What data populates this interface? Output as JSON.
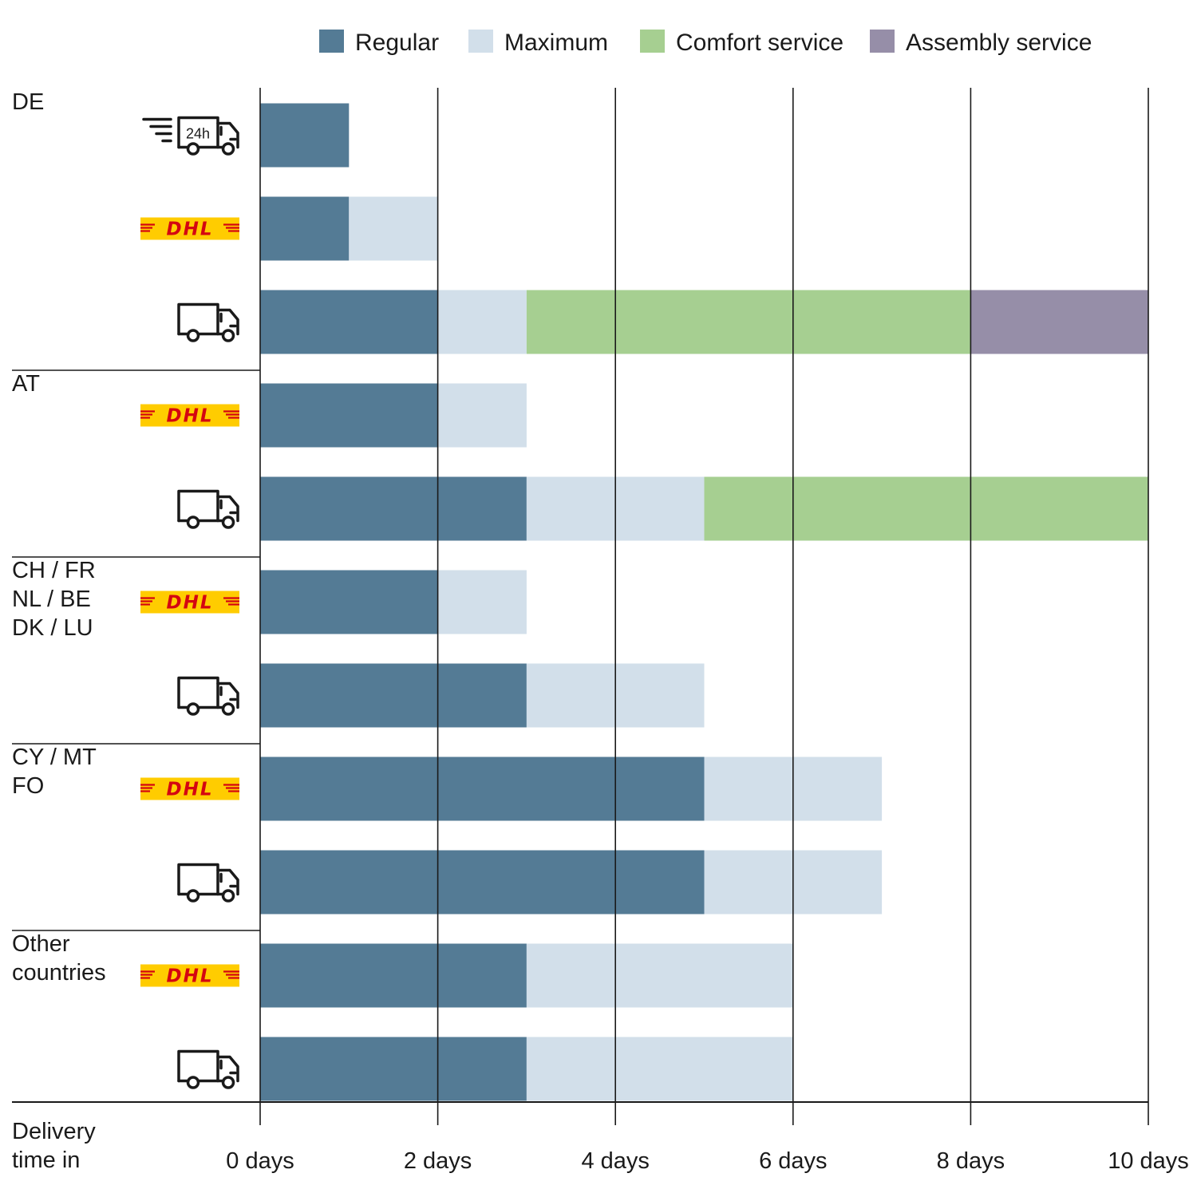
{
  "legend": [
    {
      "label": "Regular",
      "color": "#547b95"
    },
    {
      "label": "Maximum",
      "color": "#d2dfea"
    },
    {
      "label": "Comfort service",
      "color": "#a6cf91"
    },
    {
      "label": "Assembly service",
      "color": "#968ea8"
    }
  ],
  "footer": {
    "line1": "Delivery",
    "line2": "time in"
  },
  "chart_data": {
    "type": "bar",
    "orientation": "horizontal",
    "stacked": true,
    "x_unit": "days",
    "xlim": [
      0,
      10
    ],
    "x_ticks": [
      {
        "value": 0,
        "label": "0 days"
      },
      {
        "value": 2,
        "label": "2 days"
      },
      {
        "value": 4,
        "label": "4 days"
      },
      {
        "value": 6,
        "label": "6 days"
      },
      {
        "value": 8,
        "label": "8 days"
      },
      {
        "value": 10,
        "label": "10 days"
      }
    ],
    "grid": true,
    "legend_position": "top",
    "series": [
      {
        "name": "Regular",
        "color": "#547b95"
      },
      {
        "name": "Maximum",
        "color": "#d2dfea"
      },
      {
        "name": "Comfort service",
        "color": "#a6cf91"
      },
      {
        "name": "Assembly service",
        "color": "#968ea8"
      }
    ],
    "groups": [
      {
        "label_lines": [
          "DE"
        ],
        "rows": [
          {
            "carrier": "express-24h-truck-icon",
            "segments": [
              1,
              0,
              0,
              0
            ]
          },
          {
            "carrier": "dhl-logo",
            "segments": [
              1,
              1,
              0,
              0
            ]
          },
          {
            "carrier": "truck-icon",
            "segments": [
              2,
              1,
              5,
              2
            ]
          }
        ]
      },
      {
        "label_lines": [
          "AT"
        ],
        "rows": [
          {
            "carrier": "dhl-logo",
            "segments": [
              2,
              1,
              0,
              0
            ]
          },
          {
            "carrier": "truck-icon",
            "segments": [
              3,
              2,
              5,
              0
            ]
          }
        ]
      },
      {
        "label_lines": [
          "CH / FR",
          "NL / BE",
          "DK / LU"
        ],
        "rows": [
          {
            "carrier": "dhl-logo",
            "segments": [
              2,
              1,
              0,
              0
            ]
          },
          {
            "carrier": "truck-icon",
            "segments": [
              3,
              2,
              0,
              0
            ]
          }
        ]
      },
      {
        "label_lines": [
          "CY / MT",
          "FO"
        ],
        "rows": [
          {
            "carrier": "dhl-logo",
            "segments": [
              5,
              2,
              0,
              0
            ]
          },
          {
            "carrier": "truck-icon",
            "segments": [
              5,
              2,
              0,
              0
            ]
          }
        ]
      },
      {
        "label_lines": [
          "Other",
          "countries"
        ],
        "rows": [
          {
            "carrier": "dhl-logo",
            "segments": [
              3,
              3,
              0,
              0
            ]
          },
          {
            "carrier": "truck-icon",
            "segments": [
              3,
              3,
              0,
              0
            ]
          }
        ]
      }
    ],
    "icon_texts": {
      "express_badge": "24h",
      "dhl_logo": "DHL"
    }
  }
}
